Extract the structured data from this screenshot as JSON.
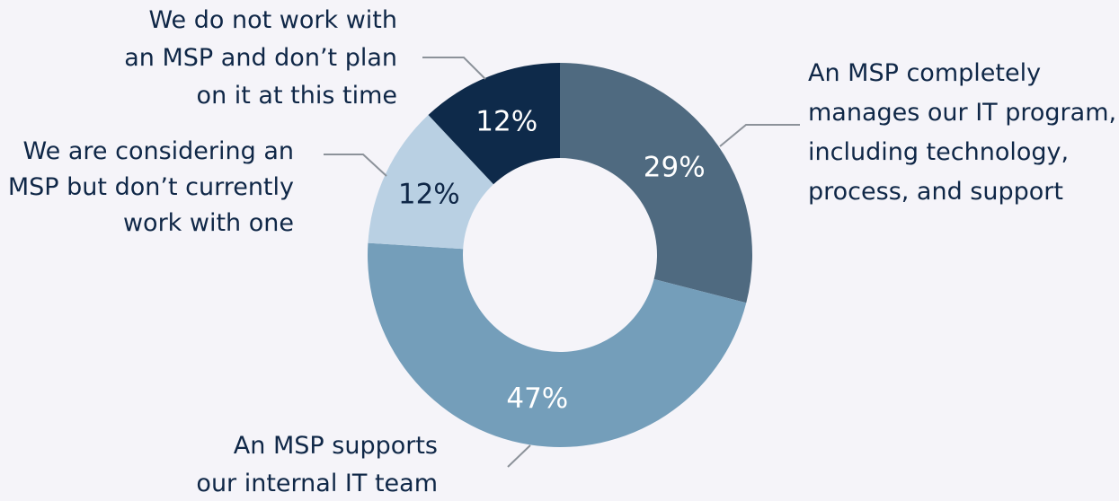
{
  "chart_data": {
    "type": "pie",
    "donut": true,
    "categories": [
      "An MSP completely manages our IT program, including technology, process, and support",
      "An MSP supports our internal IT team",
      "We are considering an MSP but don’t currently work with one",
      "We do not work with an MSP and don’t plan on it at this time"
    ],
    "values": [
      29,
      47,
      12,
      12
    ],
    "data_labels": [
      "29%",
      "47%",
      "12%",
      "12%"
    ],
    "label_lines": [
      [
        "An MSP completely",
        "manages our IT program,",
        "including technology,",
        "process, and support"
      ],
      [
        "An MSP supports",
        "our internal IT team"
      ],
      [
        "We are considering an",
        "MSP but don’t currently",
        "work with one"
      ],
      [
        "We do not work with",
        "an MSP and don’t plan",
        "on it at this time"
      ]
    ],
    "colors": [
      "#4f6a80",
      "#749eba",
      "#b9d0e3",
      "#0e2a4a"
    ],
    "data_label_colors": [
      "#ffffff",
      "#ffffff",
      "#0f2747",
      "#ffffff"
    ],
    "legend": "none",
    "start": "top, clockwise"
  }
}
